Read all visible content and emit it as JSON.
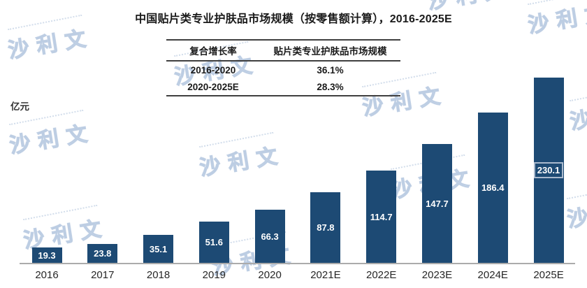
{
  "title": "中国贴片类专业护肤品市场规模（按零售额计算），2016-2025E",
  "y_axis_unit": "亿元",
  "cagr_table": {
    "headers": [
      "复合增长率",
      "贴片类专业护肤品市场规模"
    ],
    "rows": [
      [
        "2016-2020",
        "36.1%"
      ],
      [
        "2020-2025E",
        "28.3%"
      ]
    ]
  },
  "watermark_text": "沙利文",
  "colors": {
    "bar": "#1d4a74",
    "axis_line": "#ababab",
    "value_label": "#ffffff",
    "boxed_label_border": "#a9b9cd",
    "watermark": "#cbd8e9"
  },
  "chart_data": {
    "type": "bar",
    "categories": [
      "2016",
      "2017",
      "2018",
      "2019",
      "2020",
      "2021E",
      "2022E",
      "2023E",
      "2024E",
      "2025E"
    ],
    "values": [
      19.3,
      23.8,
      35.1,
      51.6,
      66.3,
      87.8,
      114.7,
      147.7,
      186.4,
      230.1
    ],
    "title": "中国贴片类专业护肤品市场规模（按零售额计算），2016-2025E",
    "xlabel": "",
    "ylabel": "亿元",
    "ylim": [
      0,
      240
    ],
    "grid": false,
    "legend": "none",
    "value_label_position": "inside-center",
    "boxed_value_label_category": "2025E"
  }
}
